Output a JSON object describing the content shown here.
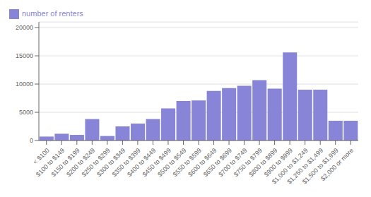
{
  "chart_data": {
    "type": "bar",
    "categories": [
      "< $100",
      "$100 to $149",
      "$150 to $199",
      "$200 to $249",
      "$250 to $299",
      "$300 to $349",
      "$350 to $399",
      "$400 to $449",
      "$450 to $499",
      "$500 to $549",
      "$550 to $599",
      "$600 to $649",
      "$650 to $699",
      "$700 to $749",
      "$750 to $799",
      "$800 to $899",
      "$900 to $999",
      "$1,000 to $1,249",
      "$1,250 to $1,499",
      "$1,500 to $1,999",
      "$2,000 or more"
    ],
    "series": [
      {
        "name": "number of renters",
        "values": [
          700,
          1200,
          1000,
          3800,
          800,
          2500,
          3000,
          3800,
          5700,
          7000,
          7100,
          8800,
          9300,
          9700,
          10700,
          9200,
          15600,
          9000,
          9000,
          3500,
          3500
        ]
      }
    ],
    "ylim": [
      0,
      21000
    ],
    "yticks": [
      0,
      5000,
      10000,
      15000,
      20000
    ],
    "grid": true,
    "legend": "upper left"
  }
}
